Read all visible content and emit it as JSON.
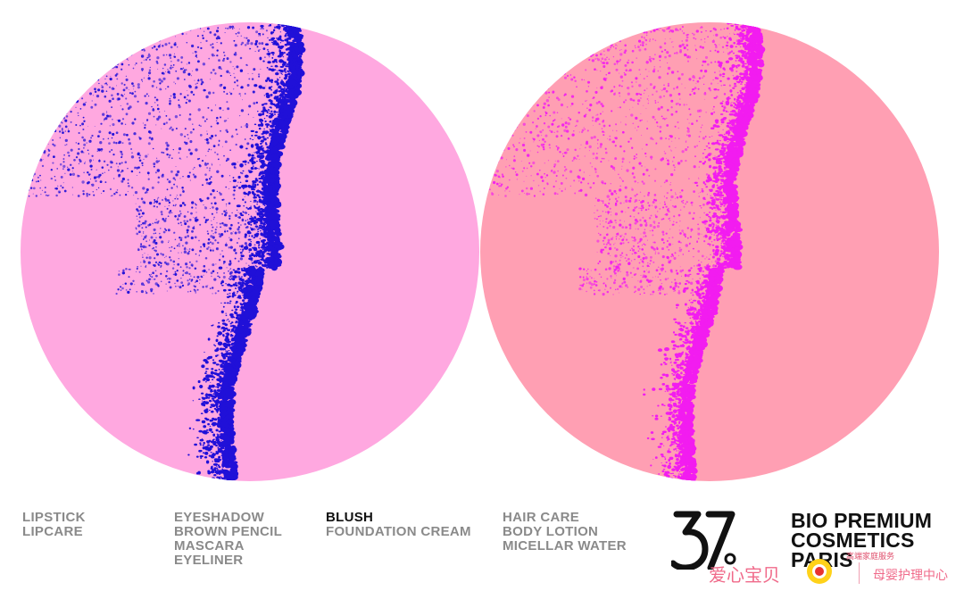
{
  "colors": {
    "background": "#ffffff",
    "circle_left_fill": "#ffa8e0",
    "circle_left_speckle": "#2010d8",
    "circle_right_fill": "#ff9fb3",
    "circle_right_speckle": "#f21cf0",
    "label_gray": "#8a8a8a",
    "label_dark": "#111111",
    "watermark_pink": "#f06a8a"
  },
  "columns": [
    {
      "items": [
        "LIPSTICK",
        "LIPCARE"
      ]
    },
    {
      "items": [
        "EYESHADOW",
        "BROWN PENCIL",
        "MASCARA",
        "EYELINER"
      ]
    },
    {
      "items": [
        "BLUSH",
        "FOUNDATION CREAM"
      ]
    },
    {
      "items": [
        "HAIR CARE",
        "BODY LOTION",
        "MICELLAR WATER"
      ]
    }
  ],
  "logo": {
    "text": "37",
    "icon": "brand-37-degree-icon"
  },
  "brand": {
    "line1": "BIO PREMIUM",
    "line2": "COSMETICS",
    "line3": "PARIS"
  },
  "watermark": {
    "main": "爱心宝贝",
    "small": "高端家庭服务",
    "center": "母婴护理中心",
    "icon": "sun-emblem-icon"
  }
}
